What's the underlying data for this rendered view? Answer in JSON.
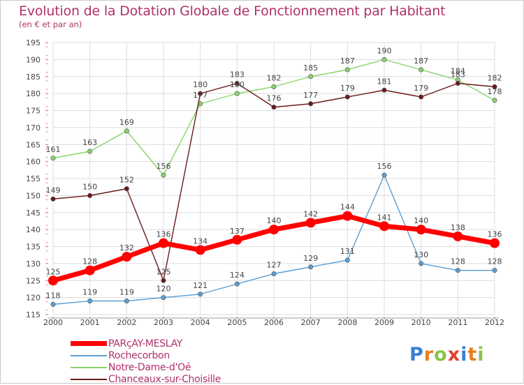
{
  "header": {
    "title": "Evolution de la Dotation Globale de Fonctionnement par Habitant",
    "subtitle": "(en € et par an)"
  },
  "brand": {
    "letters": [
      "P",
      "r",
      "o",
      "x",
      "i",
      "t",
      "i"
    ],
    "colors": [
      "#3a7fd5",
      "#e87d1e",
      "#8bc34a",
      "#e0412c",
      "#3a7fd5",
      "#e87d1e",
      "#8bc34a"
    ]
  },
  "chart_data": {
    "type": "line",
    "title": "Evolution de la Dotation Globale de Fonctionnement par Habitant",
    "subtitle": "(en € et par an)",
    "xlabel": "",
    "ylabel": "",
    "x": [
      "2000",
      "2001",
      "2002",
      "2003",
      "2004",
      "2005",
      "2006",
      "2007",
      "2008",
      "2009",
      "2010",
      "2011",
      "2012"
    ],
    "ylim": [
      115,
      195
    ],
    "yticks": [
      115,
      120,
      125,
      130,
      135,
      140,
      145,
      150,
      155,
      160,
      165,
      170,
      175,
      180,
      185,
      190,
      195
    ],
    "grid": true,
    "legend_position": "bottom-left",
    "series": [
      {
        "name": "PARçAY-MESLAY",
        "color": "#ff0000",
        "width": 7,
        "marker": 7,
        "values": [
          125,
          128,
          132,
          136,
          134,
          137,
          140,
          142,
          144,
          141,
          140,
          138,
          136
        ]
      },
      {
        "name": "Rochecorbon",
        "color": "#5a9fd4",
        "width": 1.4,
        "marker": 3.2,
        "values": [
          118,
          119,
          119,
          120,
          121,
          124,
          127,
          129,
          131,
          156,
          130,
          128,
          128
        ]
      },
      {
        "name": "Notre-Dame-d'Oé",
        "color": "#88d46a",
        "width": 1.4,
        "marker": 3.2,
        "values": [
          161,
          163,
          169,
          156,
          177,
          180,
          182,
          185,
          187,
          190,
          187,
          184,
          178
        ]
      },
      {
        "name": "Chanceaux-sur-Choisille",
        "color": "#6b1a1a",
        "width": 1.4,
        "marker": 3.2,
        "values": [
          149,
          150,
          152,
          125,
          180,
          183,
          176,
          177,
          179,
          181,
          179,
          183,
          182
        ]
      }
    ]
  }
}
